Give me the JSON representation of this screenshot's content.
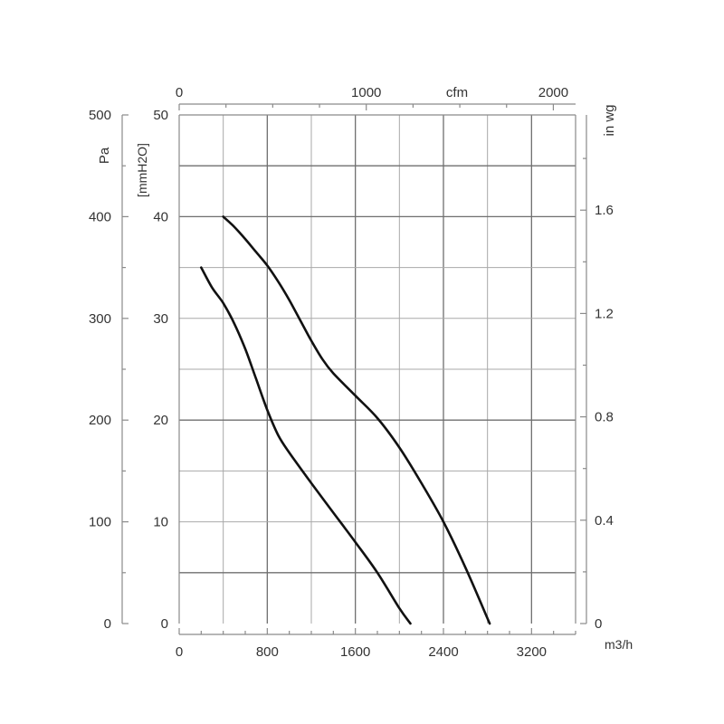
{
  "chart_data": {
    "type": "line",
    "title": "",
    "x_axis": {
      "unit": "m3/h",
      "min": 0,
      "max": 3600,
      "ticks": [
        0,
        800,
        1600,
        2400,
        3200
      ],
      "tick_labels": [
        "0",
        "800",
        "1600",
        "2400",
        "3200"
      ]
    },
    "x_axis_top": {
      "unit": "cfm",
      "ticks": [
        0,
        1000,
        2000
      ],
      "tick_labels": [
        "0",
        "1000",
        "2000"
      ]
    },
    "y_axis": {
      "unit": "[mmH2O]",
      "min": 0,
      "max": 50,
      "ticks": [
        0,
        10,
        20,
        30,
        40,
        50
      ],
      "tick_labels": [
        "0",
        "10",
        "20",
        "30",
        "40",
        "50"
      ]
    },
    "y_axis_outer": {
      "unit": "Pa",
      "ticks": [
        0,
        100,
        200,
        300,
        400,
        500
      ],
      "tick_labels": [
        "0",
        "100",
        "200",
        "300",
        "400",
        "500"
      ]
    },
    "y_axis_right": {
      "unit": "in wg",
      "ticks": [
        0,
        0.4,
        0.8,
        1.2,
        1.6
      ],
      "tick_labels": [
        "0",
        "0.4",
        "0.8",
        "1.2",
        "1.6"
      ]
    },
    "grid": true,
    "series": [
      {
        "points": [
          [
            200,
            35
          ],
          [
            300,
            33
          ],
          [
            400,
            31.5
          ],
          [
            500,
            29.5
          ],
          [
            600,
            27
          ],
          [
            700,
            24
          ],
          [
            800,
            21
          ],
          [
            900,
            18.5
          ],
          [
            1000,
            16.8
          ],
          [
            1200,
            13.8
          ],
          [
            1400,
            10.9
          ],
          [
            1600,
            8
          ],
          [
            1800,
            5
          ],
          [
            2000,
            1.5
          ],
          [
            2100,
            0
          ]
        ]
      },
      {
        "points": [
          [
            400,
            40
          ],
          [
            500,
            39
          ],
          [
            600,
            37.8
          ],
          [
            700,
            36.5
          ],
          [
            800,
            35.2
          ],
          [
            900,
            33.6
          ],
          [
            1000,
            31.8
          ],
          [
            1100,
            29.8
          ],
          [
            1200,
            27.8
          ],
          [
            1300,
            26
          ],
          [
            1400,
            24.6
          ],
          [
            1600,
            22.4
          ],
          [
            1800,
            20.2
          ],
          [
            2000,
            17.3
          ],
          [
            2200,
            13.8
          ],
          [
            2400,
            10
          ],
          [
            2600,
            5.5
          ],
          [
            2820,
            0
          ]
        ]
      }
    ]
  }
}
